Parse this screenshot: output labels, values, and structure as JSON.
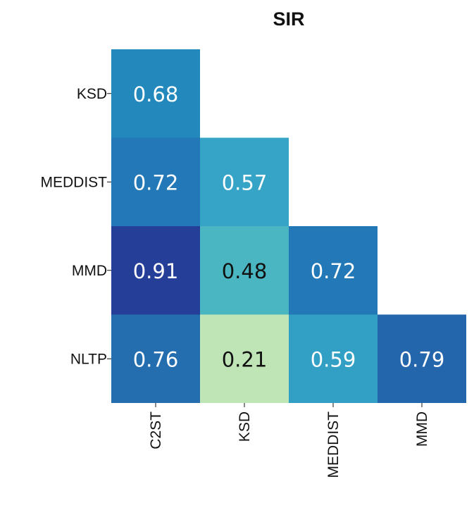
{
  "chart_data": {
    "type": "heatmap",
    "title": "SIR",
    "row_labels": [
      "KSD",
      "MEDDIST",
      "MMD",
      "NLTP"
    ],
    "col_labels": [
      "C2ST",
      "KSD",
      "MEDDIST",
      "MMD"
    ],
    "layout": "lower-triangle",
    "cells": [
      {
        "row": "KSD",
        "col": "C2ST",
        "value": 0.68,
        "label": "0.68"
      },
      {
        "row": "MEDDIST",
        "col": "C2ST",
        "value": 0.72,
        "label": "0.72"
      },
      {
        "row": "MEDDIST",
        "col": "KSD",
        "value": 0.57,
        "label": "0.57"
      },
      {
        "row": "MMD",
        "col": "C2ST",
        "value": 0.91,
        "label": "0.91"
      },
      {
        "row": "MMD",
        "col": "KSD",
        "value": 0.48,
        "label": "0.48"
      },
      {
        "row": "MMD",
        "col": "MEDDIST",
        "value": 0.72,
        "label": "0.72"
      },
      {
        "row": "NLTP",
        "col": "C2ST",
        "value": 0.76,
        "label": "0.76"
      },
      {
        "row": "NLTP",
        "col": "KSD",
        "value": 0.21,
        "label": "0.21"
      },
      {
        "row": "NLTP",
        "col": "MEDDIST",
        "value": 0.59,
        "label": "0.59"
      },
      {
        "row": "NLTP",
        "col": "MMD",
        "value": 0.79,
        "label": "0.79"
      }
    ],
    "colormap": "YlGnBu",
    "colors": {
      "0.21": "#bfe4b6",
      "0.48": "#4ab6c2",
      "0.57": "#35a4c6",
      "0.59": "#31a0c4",
      "0.68": "#2388bb",
      "0.72": "#2379b7",
      "0.76": "#246eb0",
      "0.79": "#2466ab",
      "0.91": "#253f98"
    },
    "label_colors": {
      "dark": "#111111",
      "light": "#ffffff"
    },
    "colorbar": false
  }
}
